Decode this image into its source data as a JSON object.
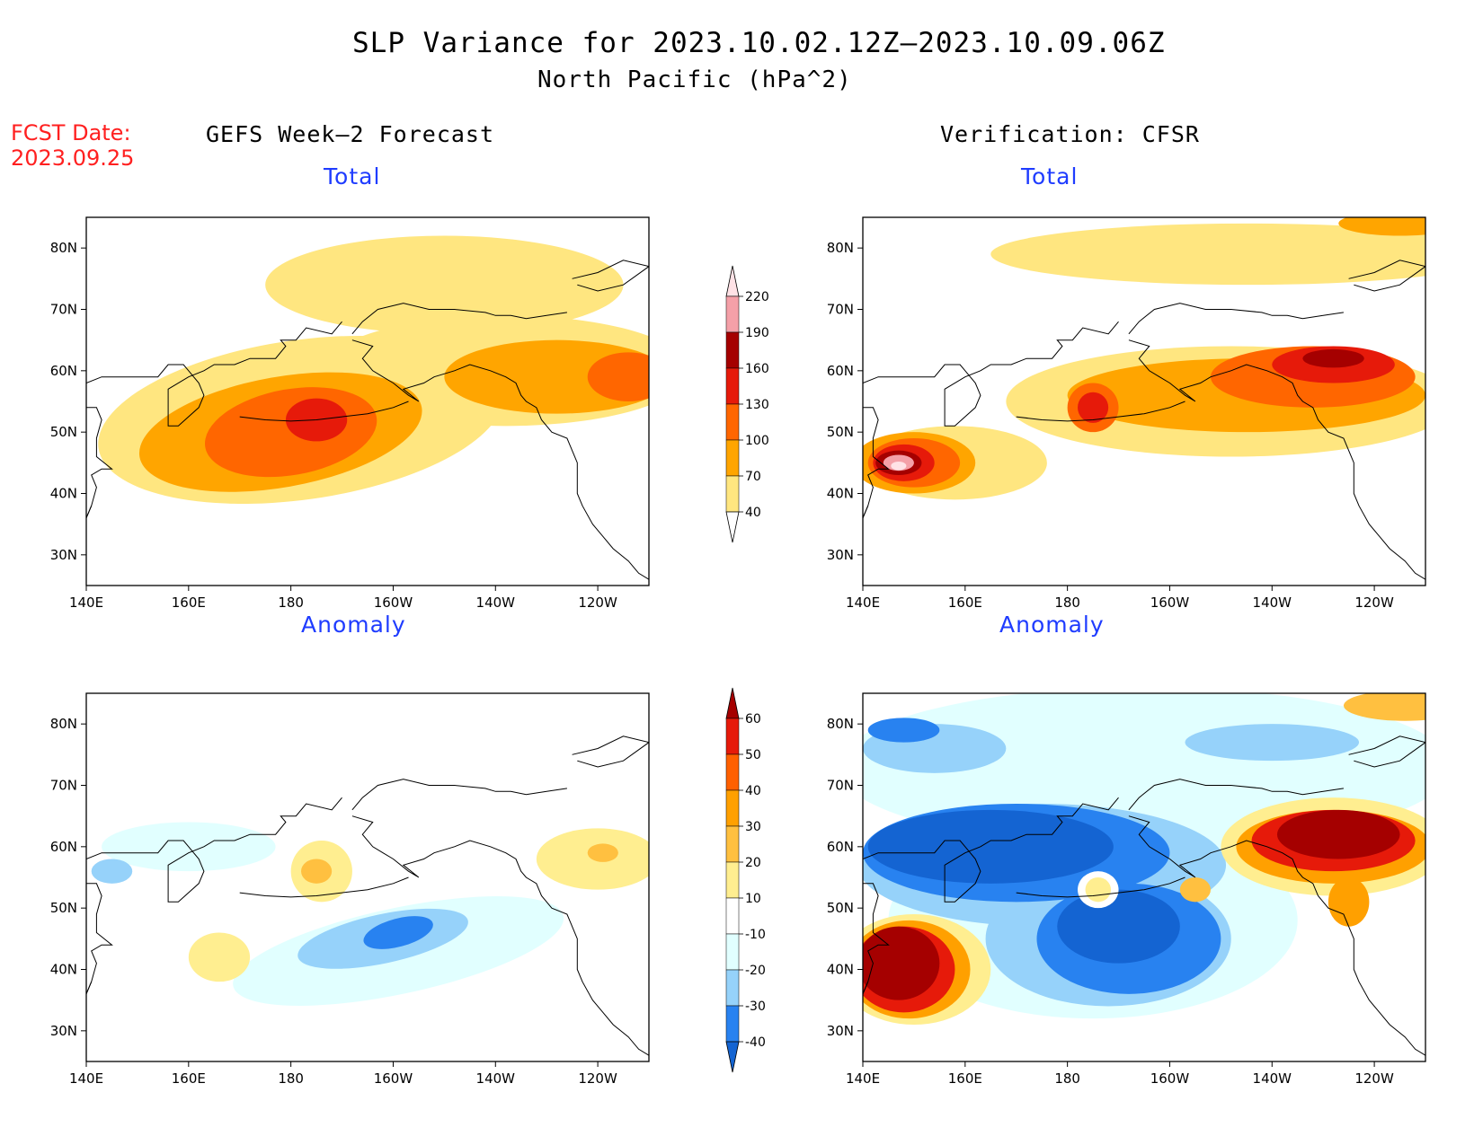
{
  "title": "SLP Variance for 2023.10.02.12Z–2023.10.09.06Z",
  "subtitle": "North Pacific (hPa^2)",
  "fcst_date": {
    "label": "FCST Date:",
    "value": "2023.09.25"
  },
  "column_headers": {
    "left": "GEFS Week–2 Forecast",
    "right": "Verification: CFSR"
  },
  "panel_titles": {
    "total": "Total",
    "anomaly": "Anomaly"
  },
  "axes": {
    "lon_labels": [
      "140E",
      "160E",
      "180",
      "160W",
      "140W",
      "120W"
    ],
    "lat_labels": [
      "80N",
      "70N",
      "60N",
      "50N",
      "40N",
      "30N"
    ],
    "lon_range": [
      140,
      250
    ],
    "lat_range": [
      25,
      85
    ]
  },
  "colorbars": {
    "total": {
      "levels": [
        "40",
        "70",
        "100",
        "130",
        "160",
        "190",
        "220"
      ],
      "colors": [
        "#ffffff",
        "#ffe680",
        "#ffa500",
        "#ff6600",
        "#e61a0a",
        "#a50000",
        "#f4a0a8",
        "#ffe2e6"
      ]
    },
    "anomaly": {
      "levels": [
        "-40",
        "-30",
        "-20",
        "-10",
        "10",
        "20",
        "30",
        "40",
        "50",
        "60"
      ],
      "colors": [
        "#1464d2",
        "#2882f0",
        "#96d2fa",
        "#e1ffff",
        "#ffffff",
        "#ffee90",
        "#ffc040",
        "#ffa000",
        "#ff6000",
        "#e61a0a",
        "#a50000"
      ]
    }
  },
  "map_data": [
    {
      "panel": "forecast-total",
      "blobs": [
        {
          "lon": 182,
          "lat": 52,
          "rx": 40,
          "ry": 13,
          "rot": -8,
          "color": "#ffe680"
        },
        {
          "lon": 222,
          "lat": 60,
          "rx": 36,
          "ry": 9,
          "rot": 0,
          "color": "#ffe680"
        },
        {
          "lon": 210,
          "lat": 74,
          "rx": 35,
          "ry": 8,
          "rot": 0,
          "color": "#ffe680"
        },
        {
          "lon": 178,
          "lat": 50,
          "rx": 28,
          "ry": 9,
          "rot": -10,
          "color": "#ffa500"
        },
        {
          "lon": 232,
          "lat": 59,
          "rx": 22,
          "ry": 6,
          "rot": 0,
          "color": "#ffa500"
        },
        {
          "lon": 180,
          "lat": 50,
          "rx": 17,
          "ry": 7,
          "rot": -10,
          "color": "#ff6600"
        },
        {
          "lon": 246,
          "lat": 59,
          "rx": 8,
          "ry": 4,
          "rot": 0,
          "color": "#ff6600"
        },
        {
          "lon": 185,
          "lat": 52,
          "rx": 6,
          "ry": 3.5,
          "rot": 0,
          "color": "#e61a0a"
        }
      ]
    },
    {
      "panel": "verification-total",
      "blobs": [
        {
          "lon": 215,
          "lat": 79,
          "rx": 50,
          "ry": 5,
          "rot": 0,
          "color": "#ffe680"
        },
        {
          "lon": 245,
          "lat": 84,
          "rx": 12,
          "ry": 2,
          "rot": 0,
          "color": "#ffa500"
        },
        {
          "lon": 212,
          "lat": 55,
          "rx": 44,
          "ry": 9,
          "rot": 0,
          "color": "#ffe680"
        },
        {
          "lon": 158,
          "lat": 45,
          "rx": 18,
          "ry": 6,
          "rot": 0,
          "color": "#ffe680"
        },
        {
          "lon": 150,
          "lat": 45,
          "rx": 12,
          "ry": 5,
          "rot": 0,
          "color": "#ffa500"
        },
        {
          "lon": 215,
          "lat": 56,
          "rx": 35,
          "ry": 6,
          "rot": 0,
          "color": "#ffa500"
        },
        {
          "lon": 150,
          "lat": 45,
          "rx": 9,
          "ry": 4,
          "rot": 0,
          "color": "#ff6600"
        },
        {
          "lon": 228,
          "lat": 59,
          "rx": 20,
          "ry": 5,
          "rot": 0,
          "color": "#ff6600"
        },
        {
          "lon": 185,
          "lat": 54,
          "rx": 5,
          "ry": 4,
          "rot": 0,
          "color": "#ff6600"
        },
        {
          "lon": 148,
          "lat": 45,
          "rx": 6,
          "ry": 3,
          "rot": 0,
          "color": "#e61a0a"
        },
        {
          "lon": 232,
          "lat": 61,
          "rx": 12,
          "ry": 3,
          "rot": 0,
          "color": "#e61a0a"
        },
        {
          "lon": 185,
          "lat": 54,
          "rx": 3,
          "ry": 2.5,
          "rot": 0,
          "color": "#e61a0a"
        },
        {
          "lon": 147,
          "lat": 45,
          "rx": 4.5,
          "ry": 2,
          "rot": 0,
          "color": "#a50000"
        },
        {
          "lon": 232,
          "lat": 62,
          "rx": 6,
          "ry": 1.5,
          "rot": 0,
          "color": "#a50000"
        },
        {
          "lon": 147,
          "lat": 45,
          "rx": 3,
          "ry": 1.3,
          "rot": 0,
          "color": "#f4a0a8"
        },
        {
          "lon": 147,
          "lat": 44.5,
          "rx": 1.5,
          "ry": 0.7,
          "rot": 0,
          "color": "#ffe2e6"
        }
      ]
    },
    {
      "panel": "forecast-anomaly",
      "blobs": [
        {
          "lon": 201,
          "lat": 43,
          "rx": 33,
          "ry": 7,
          "rot": -12,
          "color": "#e1ffff"
        },
        {
          "lon": 160,
          "lat": 60,
          "rx": 17,
          "ry": 4,
          "rot": 0,
          "color": "#e1ffff"
        },
        {
          "lon": 198,
          "lat": 45,
          "rx": 17,
          "ry": 4,
          "rot": -12,
          "color": "#96d2fa"
        },
        {
          "lon": 145,
          "lat": 56,
          "rx": 4,
          "ry": 2,
          "rot": 0,
          "color": "#96d2fa"
        },
        {
          "lon": 201,
          "lat": 46,
          "rx": 7,
          "ry": 2.3,
          "rot": -15,
          "color": "#2882f0"
        },
        {
          "lon": 186,
          "lat": 56,
          "rx": 6,
          "ry": 5,
          "rot": 0,
          "color": "#ffee90"
        },
        {
          "lon": 166,
          "lat": 42,
          "rx": 6,
          "ry": 4,
          "rot": 0,
          "color": "#ffee90"
        },
        {
          "lon": 240,
          "lat": 58,
          "rx": 12,
          "ry": 5,
          "rot": 0,
          "color": "#ffee90"
        },
        {
          "lon": 185,
          "lat": 56,
          "rx": 3,
          "ry": 2,
          "rot": 0,
          "color": "#ffc040"
        },
        {
          "lon": 241,
          "lat": 59,
          "rx": 3,
          "ry": 1.5,
          "rot": 0,
          "color": "#ffc040"
        }
      ]
    },
    {
      "panel": "verification-anomaly",
      "blobs": [
        {
          "lon": 195,
          "lat": 73,
          "rx": 60,
          "ry": 13,
          "rot": 0,
          "color": "#e1ffff"
        },
        {
          "lon": 185,
          "lat": 48,
          "rx": 40,
          "ry": 16,
          "rot": 0,
          "color": "#e1ffff"
        },
        {
          "lon": 154,
          "lat": 76,
          "rx": 14,
          "ry": 4,
          "rot": 0,
          "color": "#96d2fa"
        },
        {
          "lon": 220,
          "lat": 77,
          "rx": 17,
          "ry": 3,
          "rot": 0,
          "color": "#96d2fa"
        },
        {
          "lon": 175,
          "lat": 57,
          "rx": 36,
          "ry": 10,
          "rot": 0,
          "color": "#96d2fa"
        },
        {
          "lon": 188,
          "lat": 45,
          "rx": 24,
          "ry": 11,
          "rot": 0,
          "color": "#96d2fa"
        },
        {
          "lon": 170,
          "lat": 59,
          "rx": 30,
          "ry": 8,
          "rot": 0,
          "color": "#2882f0"
        },
        {
          "lon": 192,
          "lat": 45,
          "rx": 18,
          "ry": 9,
          "rot": 0,
          "color": "#2882f0"
        },
        {
          "lon": 148,
          "lat": 79,
          "rx": 7,
          "ry": 2,
          "rot": 0,
          "color": "#2882f0"
        },
        {
          "lon": 165,
          "lat": 60,
          "rx": 24,
          "ry": 6,
          "rot": 0,
          "color": "#1464d2"
        },
        {
          "lon": 190,
          "lat": 47,
          "rx": 12,
          "ry": 6,
          "rot": 0,
          "color": "#1464d2"
        },
        {
          "lon": 186,
          "lat": 53,
          "rx": 4,
          "ry": 3,
          "rot": 0,
          "color": "#ffffff"
        },
        {
          "lon": 186,
          "lat": 53,
          "rx": 2.5,
          "ry": 2,
          "rot": 0,
          "color": "#ffee90"
        },
        {
          "lon": 205,
          "lat": 53,
          "rx": 3,
          "ry": 2,
          "rot": 0,
          "color": "#ffc040"
        },
        {
          "lon": 150,
          "lat": 40,
          "rx": 15,
          "ry": 9,
          "rot": 0,
          "color": "#ffee90"
        },
        {
          "lon": 149,
          "lat": 40,
          "rx": 12,
          "ry": 8,
          "rot": 0,
          "color": "#ffa000"
        },
        {
          "lon": 148,
          "lat": 40,
          "rx": 10,
          "ry": 7,
          "rot": 0,
          "color": "#e61a0a"
        },
        {
          "lon": 147,
          "lat": 41,
          "rx": 8,
          "ry": 6,
          "rot": 0,
          "color": "#a50000"
        },
        {
          "lon": 232,
          "lat": 60,
          "rx": 22,
          "ry": 8,
          "rot": 0,
          "color": "#ffee90"
        },
        {
          "lon": 232,
          "lat": 60,
          "rx": 19,
          "ry": 6,
          "rot": 0,
          "color": "#ffa000"
        },
        {
          "lon": 232,
          "lat": 61,
          "rx": 16,
          "ry": 5,
          "rot": 0,
          "color": "#e61a0a"
        },
        {
          "lon": 233,
          "lat": 62,
          "rx": 12,
          "ry": 4,
          "rot": 0,
          "color": "#a50000"
        },
        {
          "lon": 235,
          "lat": 51,
          "rx": 4,
          "ry": 4,
          "rot": 0,
          "color": "#ffa000"
        },
        {
          "lon": 246,
          "lat": 83,
          "rx": 12,
          "ry": 2.5,
          "rot": 0,
          "color": "#ffc040"
        }
      ]
    }
  ]
}
